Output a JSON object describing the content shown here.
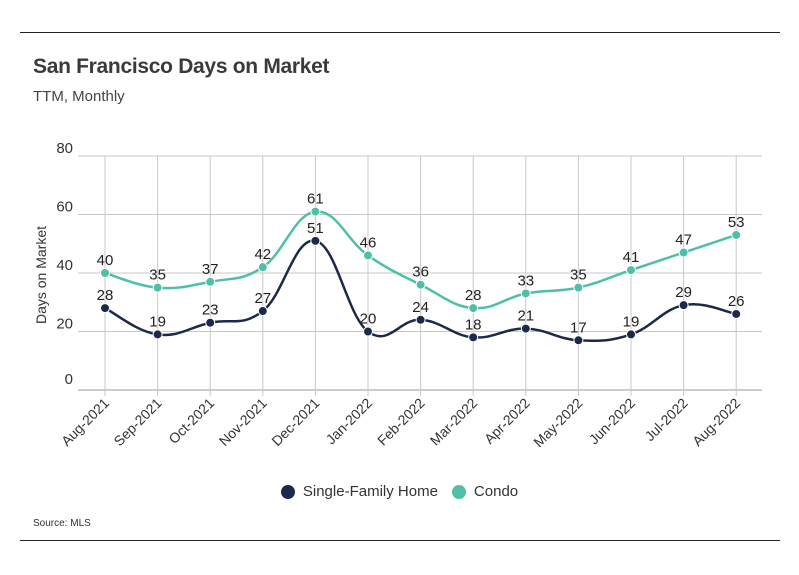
{
  "title": "San Francisco Days on Market",
  "subtitle": "TTM, Monthly",
  "source": "Source:  MLS",
  "chart_data": {
    "type": "line",
    "categories": [
      "Aug-2021",
      "Sep-2021",
      "Oct-2021",
      "Nov-2021",
      "Dec-2021",
      "Jan-2022",
      "Feb-2022",
      "Mar-2022",
      "Apr-2022",
      "May-2022",
      "Jun-2022",
      "Jul-2022",
      "Aug-2022"
    ],
    "series": [
      {
        "name": "Single-Family Home",
        "color": "#1b2a4a",
        "values": [
          28,
          19,
          23,
          27,
          51,
          20,
          24,
          18,
          21,
          17,
          19,
          29,
          26
        ]
      },
      {
        "name": "Condo",
        "color": "#4fbfa8",
        "values": [
          40,
          35,
          37,
          42,
          61,
          46,
          36,
          28,
          33,
          35,
          41,
          47,
          53
        ]
      }
    ],
    "ylabel": "Days on Market",
    "xlabel": "",
    "ylim": [
      0,
      80
    ],
    "yticks": [
      0,
      20,
      40,
      60,
      80
    ],
    "grid": true,
    "legend": "bottom-center"
  }
}
